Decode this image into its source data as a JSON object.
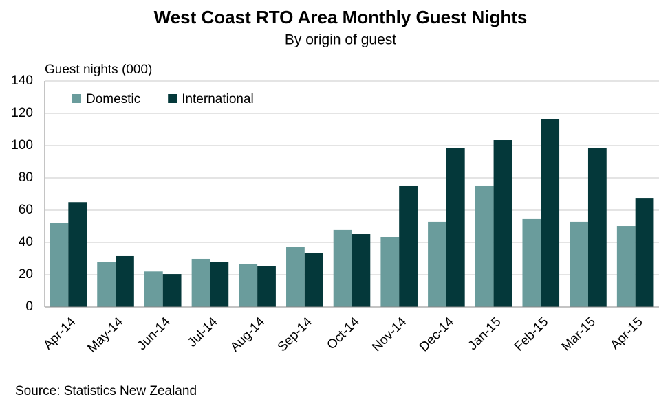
{
  "chart_data": {
    "type": "bar",
    "title": "West Coast RTO Area Monthly Guest Nights",
    "subtitle": "By origin  of guest",
    "y_label": "Guest nights (000)",
    "source": "Source: Statistics New Zealand",
    "categories": [
      "Apr-14",
      "May-14",
      "Jun-14",
      "Jul-14",
      "Aug-14",
      "Sep-14",
      "Oct-14",
      "Nov-14",
      "Dec-14",
      "Jan-15",
      "Feb-15",
      "Mar-15",
      "Apr-15"
    ],
    "series": [
      {
        "name": "Domestic",
        "color": "#6a9c9c",
        "values": [
          52,
          28,
          22,
          29.8,
          26.4,
          37.4,
          47.7,
          43.4,
          52.8,
          74.9,
          54.5,
          52.8,
          50.2
        ]
      },
      {
        "name": "International",
        "color": "#04383a",
        "values": [
          65,
          31.5,
          20.4,
          28,
          25.5,
          33.2,
          45.1,
          74.9,
          98.7,
          103.4,
          116.2,
          98.7,
          67.2
        ]
      }
    ],
    "ylim": [
      0,
      140
    ],
    "yticks": [
      0,
      20,
      40,
      60,
      80,
      100,
      120,
      140
    ],
    "grid": true,
    "legend": "upper left"
  }
}
